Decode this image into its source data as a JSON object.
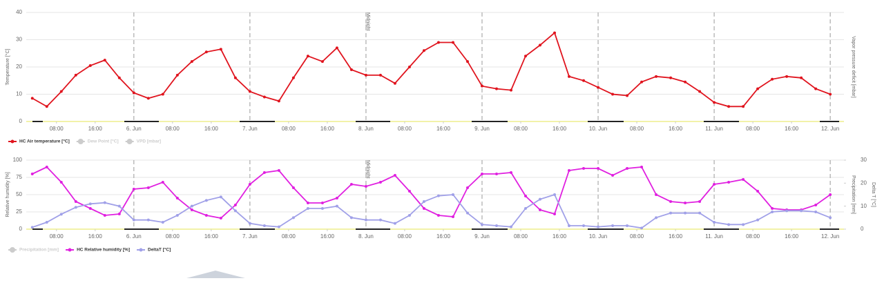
{
  "chart_data": [
    {
      "type": "line",
      "y_label": "Temperature [°C]",
      "y2_label": "Vapor pressure deficit [mbar]",
      "annotation": {
        "text": "Midnight",
        "x": "8. Jun 00:00"
      },
      "xlim": [
        "5. Jun 01:45",
        "12. Jun 02:50"
      ],
      "xticks": [
        {
          "value": "5. Jun 08:00",
          "label": "08:00"
        },
        {
          "value": "5. Jun 16:00",
          "label": "16:00"
        },
        {
          "value": "6. Jun 00:00",
          "label": "6. Jun"
        },
        {
          "value": "6. Jun 08:00",
          "label": "08:00"
        },
        {
          "value": "6. Jun 16:00",
          "label": "16:00"
        },
        {
          "value": "7. Jun 00:00",
          "label": "7. Jun"
        },
        {
          "value": "7. Jun 08:00",
          "label": "08:00"
        },
        {
          "value": "7. Jun 16:00",
          "label": "16:00"
        },
        {
          "value": "8. Jun 00:00",
          "label": "8. Jun"
        },
        {
          "value": "8. Jun 08:00",
          "label": "08:00"
        },
        {
          "value": "8. Jun 16:00",
          "label": "16:00"
        },
        {
          "value": "9. Jun 00:00",
          "label": "9. Jun"
        },
        {
          "value": "9. Jun 08:00",
          "label": "08:00"
        },
        {
          "value": "9. Jun 16:00",
          "label": "16:00"
        },
        {
          "value": "10. Jun 00:00",
          "label": "10. Jun"
        },
        {
          "value": "10. Jun 08:00",
          "label": "08:00"
        },
        {
          "value": "10. Jun 16:00",
          "label": "16:00"
        },
        {
          "value": "11. Jun 00:00",
          "label": "11. Jun"
        },
        {
          "value": "11. Jun 08:00",
          "label": "08:00"
        },
        {
          "value": "11. Jun 16:00",
          "label": "16:00"
        },
        {
          "value": "12. Jun 00:00",
          "label": "12. Jun"
        }
      ],
      "ylim": [
        0,
        40
      ],
      "yticks": [
        0,
        10,
        20,
        30,
        40
      ],
      "grid": true,
      "x": [
        "5. Jun 03:00",
        "5. Jun 06:00",
        "5. Jun 09:00",
        "5. Jun 12:00",
        "5. Jun 15:00",
        "5. Jun 18:00",
        "5. Jun 21:00",
        "6. Jun 00:00",
        "6. Jun 03:00",
        "6. Jun 06:00",
        "6. Jun 09:00",
        "6. Jun 12:00",
        "6. Jun 15:00",
        "6. Jun 18:00",
        "6. Jun 21:00",
        "7. Jun 00:00",
        "7. Jun 03:00",
        "7. Jun 06:00",
        "7. Jun 09:00",
        "7. Jun 12:00",
        "7. Jun 15:00",
        "7. Jun 18:00",
        "7. Jun 21:00",
        "8. Jun 00:00",
        "8. Jun 03:00",
        "8. Jun 06:00",
        "8. Jun 09:00",
        "8. Jun 12:00",
        "8. Jun 15:00",
        "8. Jun 18:00",
        "8. Jun 21:00",
        "9. Jun 00:00",
        "9. Jun 03:00",
        "9. Jun 06:00",
        "9. Jun 09:00",
        "9. Jun 12:00",
        "9. Jun 15:00",
        "9. Jun 18:00",
        "9. Jun 21:00",
        "10. Jun 00:00",
        "10. Jun 03:00",
        "10. Jun 06:00",
        "10. Jun 09:00",
        "10. Jun 12:00",
        "10. Jun 15:00",
        "10. Jun 18:00",
        "10. Jun 21:00",
        "11. Jun 00:00",
        "11. Jun 03:00",
        "11. Jun 06:00",
        "11. Jun 09:00",
        "11. Jun 12:00",
        "11. Jun 15:00",
        "11. Jun 18:00",
        "11. Jun 21:00",
        "12. Jun 00:00"
      ],
      "series": [
        {
          "name": "HC Air temperature [°C]",
          "color": "#e0141e",
          "values": [
            8.5,
            5.5,
            11,
            17,
            20.5,
            22.5,
            16,
            10.5,
            8.5,
            10,
            17,
            22,
            25.5,
            26.5,
            16,
            11,
            9,
            7.5,
            16,
            24,
            22,
            27,
            19,
            17,
            17,
            14,
            20,
            26,
            29,
            29,
            22,
            13,
            12,
            11.5,
            24,
            28,
            32.5,
            16.5,
            15,
            12.5,
            10,
            9.5,
            14.5,
            16.5,
            16,
            14.5,
            11,
            7,
            5.5,
            5.5,
            12,
            15.5,
            16.5,
            16,
            12,
            10
          ]
        }
      ],
      "inactive_legend": [
        {
          "name": "Dew Point [°C]",
          "color": "#cccccc"
        },
        {
          "name": "VPD [mbar]",
          "color": "#cccccc"
        }
      ]
    },
    {
      "type": "line",
      "y_label": "Relative humidity [%]",
      "y2_label": "Delta T [°C]",
      "y3_label": "Precipitation [mm]",
      "annotation": {
        "text": "Midnight",
        "x": "8. Jun 00:00"
      },
      "xlim": [
        "5. Jun 01:45",
        "12. Jun 02:50"
      ],
      "xticks": [
        {
          "value": "5. Jun 08:00",
          "label": "08:00"
        },
        {
          "value": "5. Jun 16:00",
          "label": "16:00"
        },
        {
          "value": "6. Jun 00:00",
          "label": "6. Jun"
        },
        {
          "value": "6. Jun 08:00",
          "label": "08:00"
        },
        {
          "value": "6. Jun 16:00",
          "label": "16:00"
        },
        {
          "value": "7. Jun 00:00",
          "label": "7. Jun"
        },
        {
          "value": "7. Jun 08:00",
          "label": "08:00"
        },
        {
          "value": "7. Jun 16:00",
          "label": "16:00"
        },
        {
          "value": "8. Jun 00:00",
          "label": "8. Jun"
        },
        {
          "value": "8. Jun 08:00",
          "label": "08:00"
        },
        {
          "value": "8. Jun 16:00",
          "label": "16:00"
        },
        {
          "value": "9. Jun 00:00",
          "label": "9. Jun"
        },
        {
          "value": "9. Jun 08:00",
          "label": "08:00"
        },
        {
          "value": "9. Jun 16:00",
          "label": "16:00"
        },
        {
          "value": "10. Jun 00:00",
          "label": "10. Jun"
        },
        {
          "value": "10. Jun 08:00",
          "label": "08:00"
        },
        {
          "value": "10. Jun 16:00",
          "label": "16:00"
        },
        {
          "value": "11. Jun 00:00",
          "label": "11. Jun"
        },
        {
          "value": "11. Jun 08:00",
          "label": "08:00"
        },
        {
          "value": "11. Jun 16:00",
          "label": "16:00"
        },
        {
          "value": "12. Jun 00:00",
          "label": "12. Jun"
        }
      ],
      "ylim": [
        0,
        100
      ],
      "yticks": [
        0,
        25,
        50,
        75,
        100
      ],
      "y2lim": [
        0,
        30
      ],
      "y2ticks": [
        0,
        10,
        20,
        30
      ],
      "grid": true,
      "x": [
        "5. Jun 03:00",
        "5. Jun 06:00",
        "5. Jun 09:00",
        "5. Jun 12:00",
        "5. Jun 15:00",
        "5. Jun 18:00",
        "5. Jun 21:00",
        "6. Jun 00:00",
        "6. Jun 03:00",
        "6. Jun 06:00",
        "6. Jun 09:00",
        "6. Jun 12:00",
        "6. Jun 15:00",
        "6. Jun 18:00",
        "6. Jun 21:00",
        "7. Jun 00:00",
        "7. Jun 03:00",
        "7. Jun 06:00",
        "7. Jun 09:00",
        "7. Jun 12:00",
        "7. Jun 15:00",
        "7. Jun 18:00",
        "7. Jun 21:00",
        "8. Jun 00:00",
        "8. Jun 03:00",
        "8. Jun 06:00",
        "8. Jun 09:00",
        "8. Jun 12:00",
        "8. Jun 15:00",
        "8. Jun 18:00",
        "8. Jun 21:00",
        "9. Jun 00:00",
        "9. Jun 03:00",
        "9. Jun 06:00",
        "9. Jun 09:00",
        "9. Jun 12:00",
        "9. Jun 15:00",
        "9. Jun 18:00",
        "9. Jun 21:00",
        "10. Jun 00:00",
        "10. Jun 03:00",
        "10. Jun 06:00",
        "10. Jun 09:00",
        "10. Jun 12:00",
        "10. Jun 15:00",
        "10. Jun 18:00",
        "10. Jun 21:00",
        "11. Jun 00:00",
        "11. Jun 03:00",
        "11. Jun 06:00",
        "11. Jun 09:00",
        "11. Jun 12:00",
        "11. Jun 15:00",
        "11. Jun 18:00",
        "11. Jun 21:00",
        "12. Jun 00:00"
      ],
      "series": [
        {
          "name": "HC Relative humidity [%]",
          "color": "#e020e0",
          "values": [
            80,
            90,
            68,
            40,
            30,
            20,
            22,
            58,
            60,
            68,
            45,
            28,
            20,
            16,
            35,
            65,
            82,
            85,
            60,
            38,
            38,
            45,
            65,
            62,
            68,
            78,
            55,
            30,
            20,
            18,
            60,
            80,
            80,
            82,
            48,
            28,
            22,
            85,
            88,
            88,
            78,
            88,
            90,
            50,
            40,
            38,
            40,
            65,
            68,
            72,
            55,
            30,
            28,
            28,
            35,
            50
          ]
        },
        {
          "name": "DeltaT [°C]",
          "color": "#a0a0e8",
          "axis": "y2",
          "values": [
            0.8,
            3,
            6.5,
            9.5,
            11,
            11.5,
            10,
            4,
            4,
            3,
            6,
            10,
            12.5,
            14,
            8,
            2.5,
            1.5,
            1,
            5,
            9,
            9,
            10,
            5,
            4,
            4,
            2.5,
            6,
            12,
            14.5,
            15,
            7,
            2,
            1.5,
            1,
            9,
            13,
            15,
            1.5,
            1.5,
            1,
            1.5,
            1.5,
            0.5,
            5,
            7,
            7,
            7,
            3,
            2,
            2,
            4,
            7.5,
            8,
            8,
            7.5,
            5
          ]
        }
      ],
      "inactive_legend": [
        {
          "name": "Precipitation [mm]",
          "color": "#cccccc"
        }
      ]
    }
  ]
}
